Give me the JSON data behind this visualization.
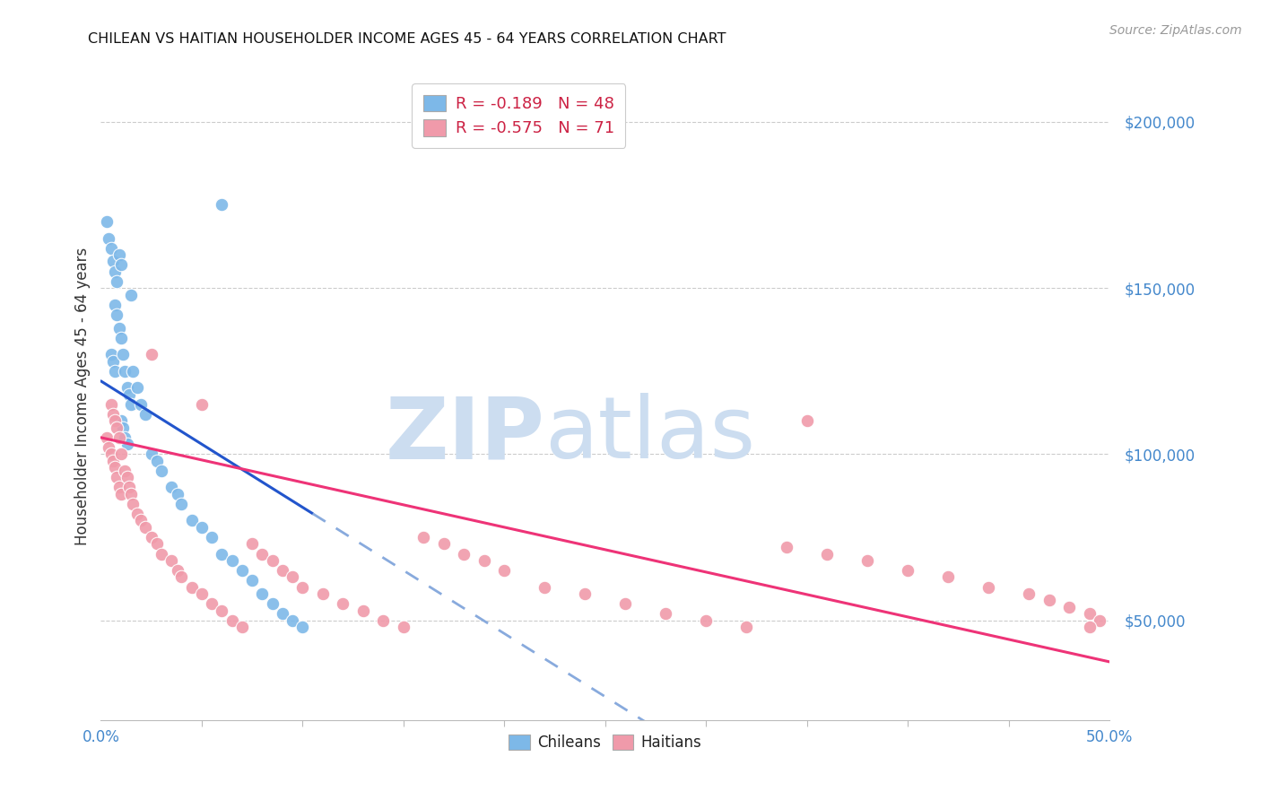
{
  "title": "CHILEAN VS HAITIAN HOUSEHOLDER INCOME AGES 45 - 64 YEARS CORRELATION CHART",
  "source": "Source: ZipAtlas.com",
  "ylabel": "Householder Income Ages 45 - 64 years",
  "xlim": [
    0.0,
    0.5
  ],
  "ylim": [
    20000,
    215000
  ],
  "yticks": [
    50000,
    100000,
    150000,
    200000
  ],
  "ytick_labels": [
    "$50,000",
    "$100,000",
    "$150,000",
    "$200,000"
  ],
  "legend_R_chilean": "-0.189",
  "legend_N_chilean": "48",
  "legend_R_haitian": "-0.575",
  "legend_N_haitian": "71",
  "chilean_color": "#7db8e8",
  "haitian_color": "#f09aaa",
  "chilean_line_color": "#2255cc",
  "chilean_dash_color": "#88aadd",
  "haitian_line_color": "#ee3377",
  "background_color": "#ffffff",
  "grid_color": "#cccccc",
  "axis_color": "#4488cc",
  "title_color": "#111111",
  "source_color": "#999999",
  "legend_text_color": "#cc2244",
  "legend_N_color": "#1155cc",
  "watermark_zip_color": "#ccddf0",
  "watermark_atlas_color": "#ccddf0",
  "chilean_x": [
    0.003,
    0.004,
    0.005,
    0.006,
    0.007,
    0.008,
    0.009,
    0.01,
    0.005,
    0.006,
    0.007,
    0.007,
    0.008,
    0.009,
    0.01,
    0.011,
    0.012,
    0.013,
    0.014,
    0.015,
    0.016,
    0.018,
    0.02,
    0.022,
    0.01,
    0.011,
    0.012,
    0.013,
    0.025,
    0.028,
    0.03,
    0.035,
    0.038,
    0.04,
    0.045,
    0.05,
    0.055,
    0.06,
    0.065,
    0.07,
    0.075,
    0.08,
    0.085,
    0.09,
    0.095,
    0.1,
    0.06,
    0.015
  ],
  "chilean_y": [
    170000,
    165000,
    162000,
    158000,
    155000,
    152000,
    160000,
    157000,
    130000,
    128000,
    125000,
    145000,
    142000,
    138000,
    135000,
    130000,
    125000,
    120000,
    118000,
    115000,
    125000,
    120000,
    115000,
    112000,
    110000,
    108000,
    105000,
    103000,
    100000,
    98000,
    95000,
    90000,
    88000,
    85000,
    80000,
    78000,
    75000,
    70000,
    68000,
    65000,
    62000,
    58000,
    55000,
    52000,
    50000,
    48000,
    175000,
    148000
  ],
  "haitian_x": [
    0.003,
    0.004,
    0.005,
    0.006,
    0.007,
    0.008,
    0.009,
    0.01,
    0.005,
    0.006,
    0.007,
    0.008,
    0.009,
    0.01,
    0.012,
    0.013,
    0.014,
    0.015,
    0.016,
    0.018,
    0.02,
    0.022,
    0.025,
    0.028,
    0.03,
    0.035,
    0.038,
    0.04,
    0.045,
    0.05,
    0.055,
    0.06,
    0.065,
    0.07,
    0.075,
    0.08,
    0.085,
    0.09,
    0.095,
    0.1,
    0.11,
    0.12,
    0.13,
    0.14,
    0.15,
    0.16,
    0.17,
    0.18,
    0.19,
    0.2,
    0.22,
    0.24,
    0.26,
    0.28,
    0.3,
    0.32,
    0.34,
    0.36,
    0.38,
    0.4,
    0.42,
    0.44,
    0.46,
    0.47,
    0.48,
    0.49,
    0.495,
    0.025,
    0.05,
    0.35,
    0.49
  ],
  "haitian_y": [
    105000,
    102000,
    100000,
    98000,
    96000,
    93000,
    90000,
    88000,
    115000,
    112000,
    110000,
    108000,
    105000,
    100000,
    95000,
    93000,
    90000,
    88000,
    85000,
    82000,
    80000,
    78000,
    75000,
    73000,
    70000,
    68000,
    65000,
    63000,
    60000,
    58000,
    55000,
    53000,
    50000,
    48000,
    73000,
    70000,
    68000,
    65000,
    63000,
    60000,
    58000,
    55000,
    53000,
    50000,
    48000,
    75000,
    73000,
    70000,
    68000,
    65000,
    60000,
    58000,
    55000,
    52000,
    50000,
    48000,
    72000,
    70000,
    68000,
    65000,
    63000,
    60000,
    58000,
    56000,
    54000,
    52000,
    50000,
    130000,
    115000,
    110000,
    48000
  ]
}
